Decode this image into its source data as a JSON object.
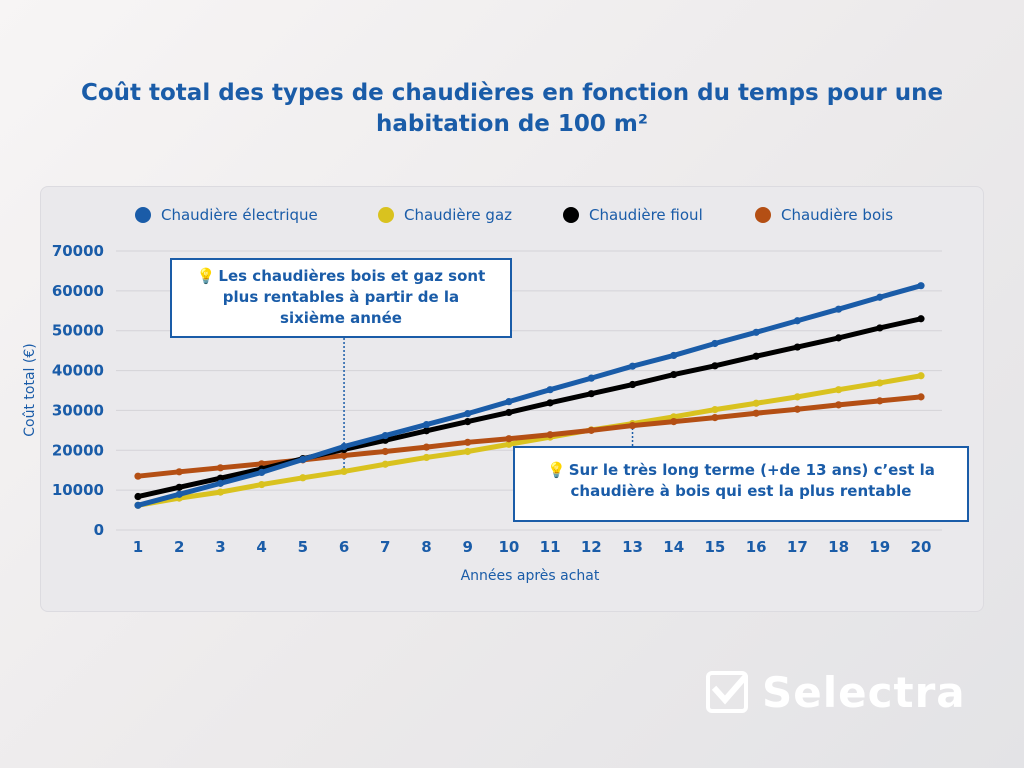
{
  "chart_data": {
    "type": "line",
    "title_lines": [
      "Coût total des types de chaudières en fonction du temps pour une",
      "habitation de 100 m²"
    ],
    "xlabel": "Années après achat",
    "ylabel": "Coût total (€)",
    "x": [
      1,
      2,
      3,
      4,
      5,
      6,
      7,
      8,
      9,
      10,
      11,
      12,
      13,
      14,
      15,
      16,
      17,
      18,
      19,
      20
    ],
    "xlim": [
      1,
      20
    ],
    "ylim": [
      0,
      70000
    ],
    "yticks": [
      0,
      10000,
      20000,
      30000,
      40000,
      50000,
      60000,
      70000
    ],
    "grid": "horizontal",
    "legend_position": "top",
    "series": [
      {
        "name": "Chaudière électrique",
        "color": "#1a5ca8",
        "values": [
          6200,
          8950,
          11700,
          14450,
          17700,
          20950,
          23700,
          26450,
          29200,
          32200,
          35200,
          38100,
          41100,
          43800,
          46800,
          49600,
          52500,
          55400,
          58400,
          61300
        ]
      },
      {
        "name": "Chaudière gaz",
        "color": "#d9c21f",
        "values": [
          6200,
          8000,
          9500,
          11400,
          13100,
          14700,
          16500,
          18200,
          19700,
          21500,
          23300,
          25100,
          26700,
          28400,
          30200,
          31800,
          33400,
          35200,
          36900,
          38700
        ]
      },
      {
        "name": "Chaudière fioul",
        "color": "#000000",
        "values": [
          8400,
          10700,
          13000,
          15300,
          17900,
          20200,
          22500,
          24900,
          27200,
          29500,
          31900,
          34200,
          36500,
          39000,
          41200,
          43600,
          45900,
          48200,
          50700,
          53000
        ]
      },
      {
        "name": "Chaudière bois",
        "color": "#b44f14",
        "values": [
          13500,
          14600,
          15600,
          16600,
          17600,
          18700,
          19700,
          20800,
          22000,
          22900,
          23900,
          25000,
          26200,
          27200,
          28200,
          29300,
          30300,
          31400,
          32400,
          33400
        ]
      }
    ],
    "annotations": [
      {
        "icon": "lightbulb-icon",
        "lines": [
          "Les chaudières bois et gaz sont",
          "plus rentables à partir de la",
          "sixième année"
        ],
        "x": 6
      },
      {
        "icon": "lightbulb-icon",
        "lines": [
          "Sur le très long terme (+de 13 ans) c’est la",
          "chaudière à bois qui est la plus rentable"
        ],
        "x": 13
      }
    ]
  },
  "brand": {
    "name": "Selectra",
    "logo_icon": "checkmark-box-icon"
  }
}
